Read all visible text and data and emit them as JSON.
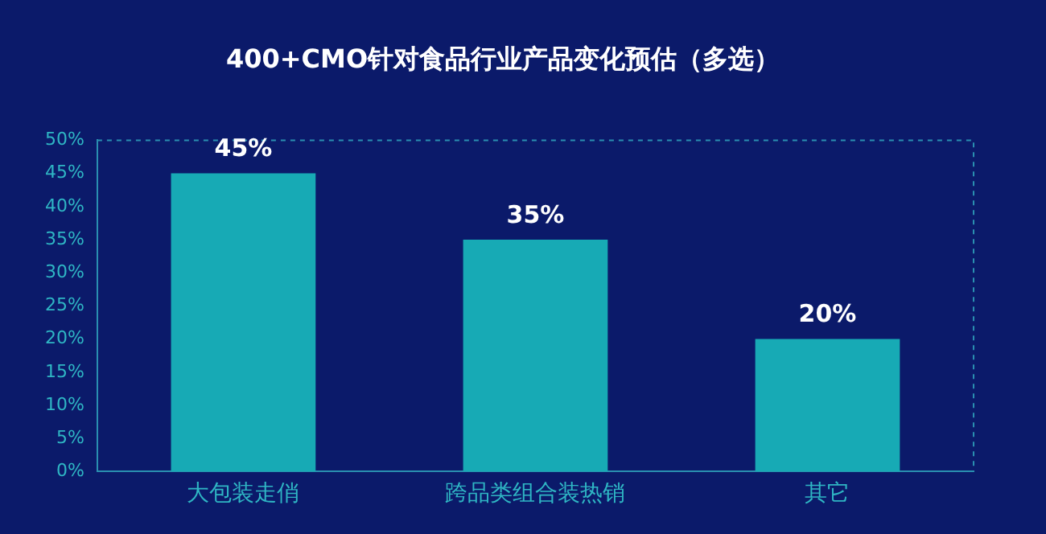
{
  "chart_data": {
    "type": "bar",
    "title": "400+CMO针对食品行业产品变化预估（多选）",
    "categories": [
      "大包装走俏",
      "跨品类组合装热销",
      "其它"
    ],
    "values": [
      45,
      35,
      20
    ],
    "color": "#17aab5",
    "value_labels": [
      "45%",
      "35%",
      "20%"
    ],
    "ylim": [
      0,
      50
    ],
    "yticks": [
      {
        "value": 0,
        "label": "0%"
      },
      {
        "value": 5,
        "label": "5%"
      },
      {
        "value": 10,
        "label": "10%"
      },
      {
        "value": 15,
        "label": "15%"
      },
      {
        "value": 20,
        "label": "20%"
      },
      {
        "value": 25,
        "label": "25%"
      },
      {
        "value": 30,
        "label": "30%"
      },
      {
        "value": 35,
        "label": "35%"
      },
      {
        "value": 40,
        "label": "40%"
      },
      {
        "value": 45,
        "label": "45%"
      },
      {
        "value": 50,
        "label": "50%"
      }
    ],
    "grid": false,
    "legend": false
  }
}
